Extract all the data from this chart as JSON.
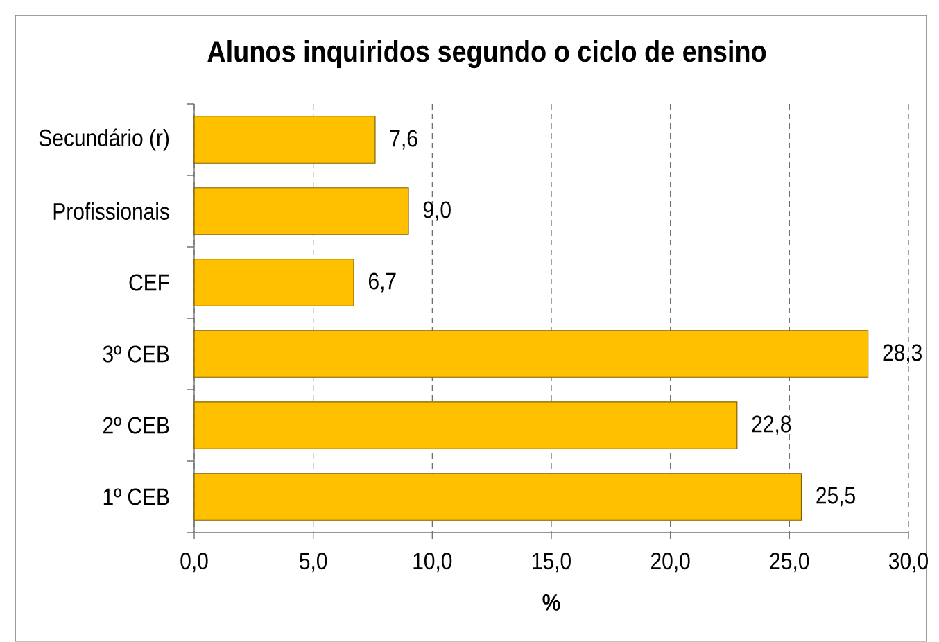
{
  "chart_data": {
    "type": "bar",
    "orientation": "horizontal",
    "title": "Alunos inquiridos segundo o ciclo de ensino",
    "xlabel": "%",
    "categories": [
      "Secundário (r)",
      "Profissionais",
      "CEF",
      "3º CEB",
      "2º CEB",
      "1º CEB"
    ],
    "values": [
      7.6,
      9.0,
      6.7,
      28.3,
      22.8,
      25.5
    ],
    "value_labels": [
      "7,6",
      "9,0",
      "6,7",
      "28,3",
      "22,8",
      "25,5"
    ],
    "color": "#ffc000",
    "xlim": [
      0,
      30
    ],
    "xticks": [
      {
        "value": 0,
        "label": "0,0"
      },
      {
        "value": 5,
        "label": "5,0"
      },
      {
        "value": 10,
        "label": "10,0"
      },
      {
        "value": 15,
        "label": "15,0"
      },
      {
        "value": 20,
        "label": "20,0"
      },
      {
        "value": 25,
        "label": "25,0"
      },
      {
        "value": 30,
        "label": "30,0"
      }
    ],
    "grid": "x"
  }
}
